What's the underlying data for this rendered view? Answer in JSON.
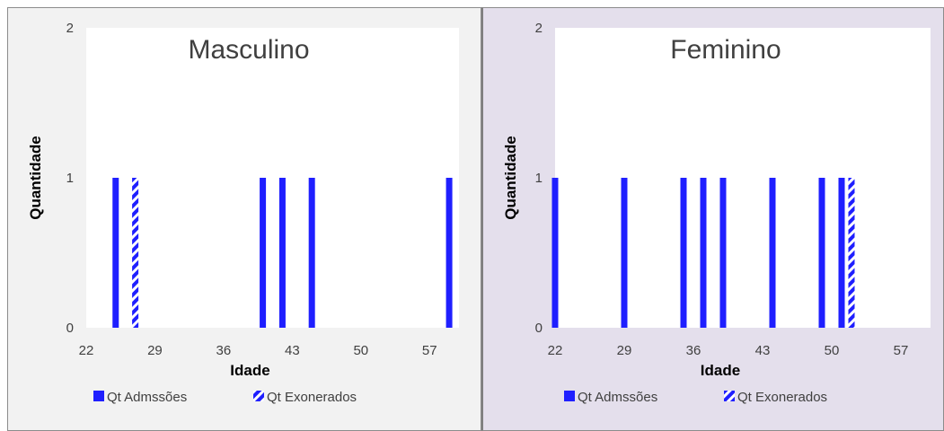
{
  "chart_data": [
    {
      "type": "bar",
      "title": "Masculino",
      "xlabel": "Idade",
      "ylabel": "Quantidade",
      "ylim": [
        0,
        2
      ],
      "xlim": [
        22,
        60
      ],
      "x_ticks": [
        22,
        29,
        36,
        43,
        50,
        57
      ],
      "y_ticks": [
        0,
        1,
        2
      ],
      "series": [
        {
          "name": "Qt Admssões",
          "pattern": "solid",
          "x": [
            25,
            40,
            42,
            45,
            59
          ],
          "values": [
            1,
            1,
            1,
            1,
            1
          ]
        },
        {
          "name": "Qt Exonerados",
          "pattern": "striped",
          "x": [
            27
          ],
          "values": [
            1
          ]
        }
      ],
      "grid": false,
      "legend": "bottom"
    },
    {
      "type": "bar",
      "title": "Feminino",
      "xlabel": "Idade",
      "ylabel": "Quantidade",
      "ylim": [
        0,
        2
      ],
      "xlim": [
        22,
        60
      ],
      "x_ticks": [
        22,
        29,
        36,
        43,
        50,
        57
      ],
      "y_ticks": [
        0,
        1,
        2
      ],
      "series": [
        {
          "name": "Qt Admssões",
          "pattern": "solid",
          "x": [
            22,
            29,
            35,
            37,
            39,
            44,
            49,
            51
          ],
          "values": [
            1,
            1,
            1,
            1,
            1,
            1,
            1,
            1
          ]
        },
        {
          "name": "Qt Exonerados",
          "pattern": "striped",
          "x": [
            52
          ],
          "values": [
            1
          ]
        }
      ],
      "grid": false,
      "legend": "bottom"
    }
  ],
  "colors": {
    "bar": "#1f1fff",
    "left_background": "#f2f2f2",
    "right_background": "#e4dfec",
    "plot_background": "#ffffff"
  }
}
